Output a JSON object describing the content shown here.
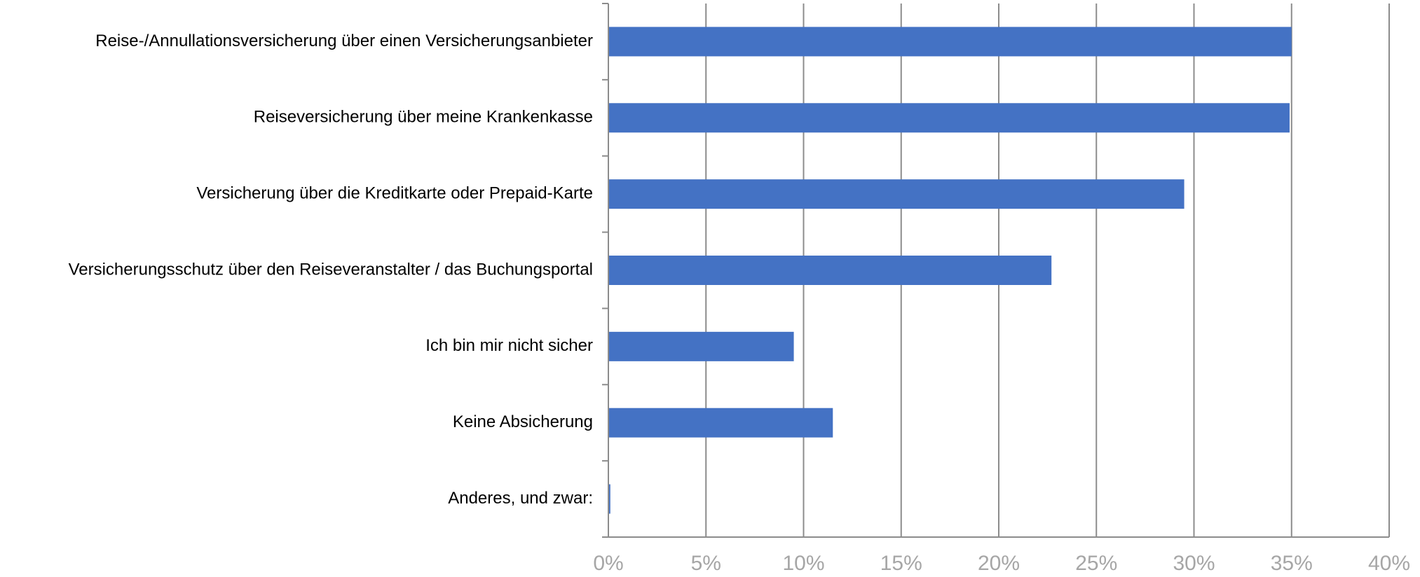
{
  "chart_data": {
    "type": "hbar",
    "categories": [
      "Reise-/Annullationsversicherung über einen Versicherungsanbieter",
      "Reiseversicherung über meine Krankenkasse",
      "Versicherung über die Kreditkarte oder Prepaid-Karte",
      "Versicherungsschutz über den Reiseveranstalter / das Buchungsportal",
      "Ich bin mir nicht sicher",
      "Keine Absicherung",
      "Anderes, und zwar:"
    ],
    "values": [
      35,
      34.9,
      29.5,
      22.7,
      9.5,
      11.5,
      0.1
    ],
    "color": "#4472c4",
    "xlim": [
      0,
      40
    ],
    "xticks": [
      {
        "value": 0,
        "label": "0%"
      },
      {
        "value": 5,
        "label": "5%"
      },
      {
        "value": 10,
        "label": "10%"
      },
      {
        "value": 15,
        "label": "15%"
      },
      {
        "value": 20,
        "label": "20%"
      },
      {
        "value": 25,
        "label": "25%"
      },
      {
        "value": 30,
        "label": "30%"
      },
      {
        "value": 35,
        "label": "35%"
      },
      {
        "value": 40,
        "label": "40%"
      }
    ],
    "grid": true
  }
}
